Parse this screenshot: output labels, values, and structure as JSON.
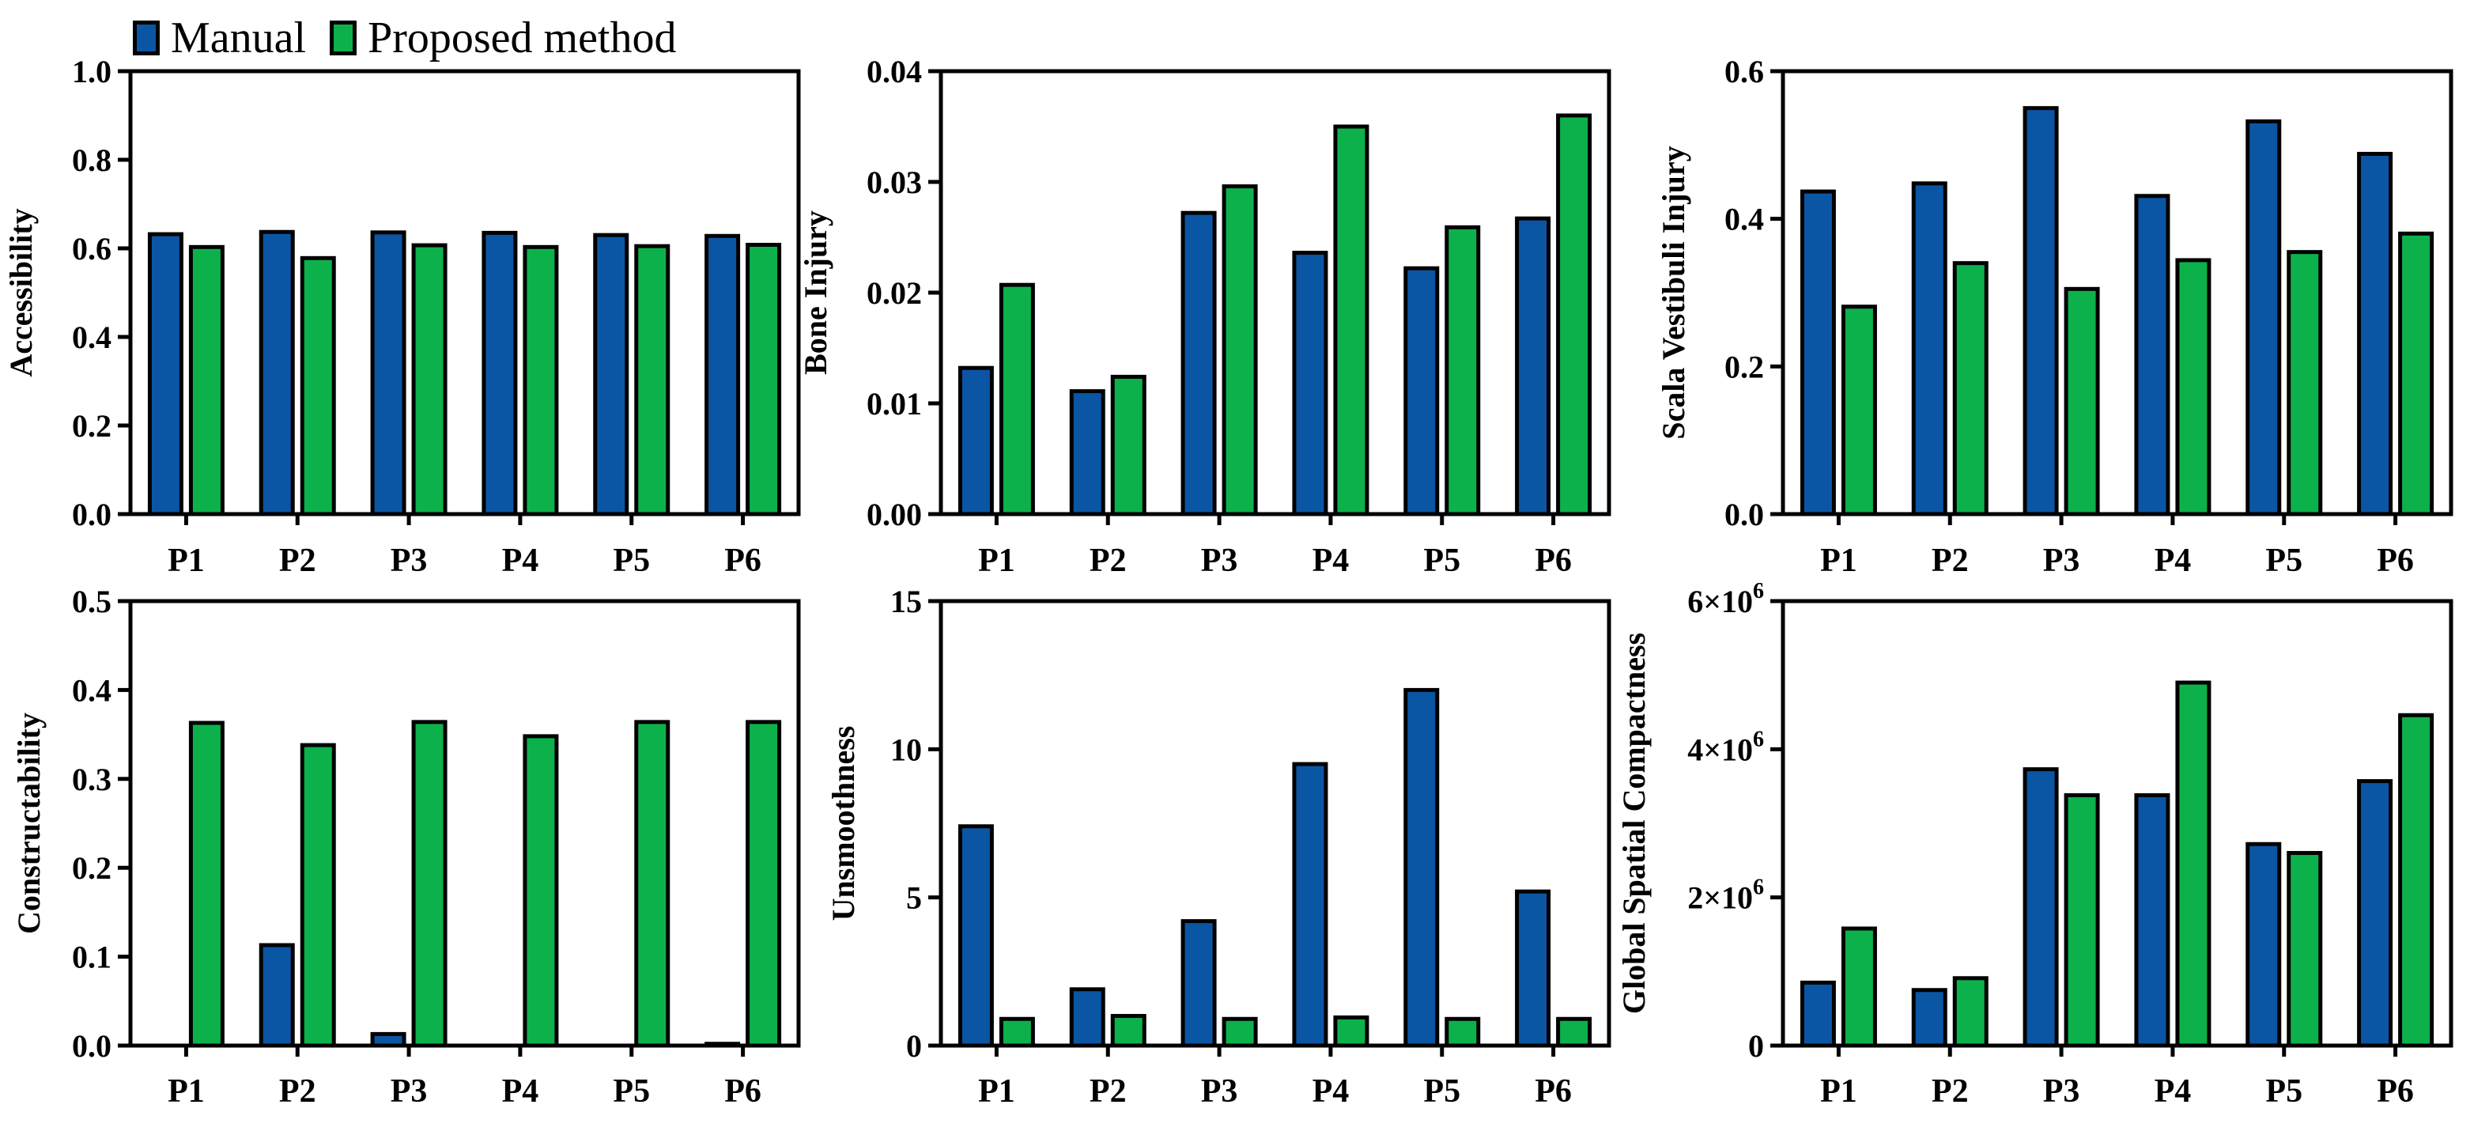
{
  "legend": {
    "items": [
      {
        "label": "Manual",
        "color": "#0b56a4"
      },
      {
        "label": "Proposed method",
        "color": "#0db14b"
      }
    ]
  },
  "chart_data": [
    {
      "type": "bar",
      "title": "",
      "xlabel": "",
      "ylabel": "Accessibility",
      "categories": [
        "P1",
        "P2",
        "P3",
        "P4",
        "P5",
        "P6"
      ],
      "ylim": [
        0,
        1.0
      ],
      "yticks": [
        "0.0",
        "0.2",
        "0.4",
        "0.6",
        "0.8",
        "1.0"
      ],
      "series": [
        {
          "name": "Manual",
          "values": [
            0.632,
            0.637,
            0.636,
            0.635,
            0.63,
            0.628
          ]
        },
        {
          "name": "Proposed method",
          "values": [
            0.603,
            0.578,
            0.607,
            0.603,
            0.605,
            0.608
          ]
        }
      ]
    },
    {
      "type": "bar",
      "title": "",
      "xlabel": "",
      "ylabel": "Bone Injury",
      "categories": [
        "P1",
        "P2",
        "P3",
        "P4",
        "P5",
        "P6"
      ],
      "ylim": [
        0,
        0.04
      ],
      "yticks": [
        "0.00",
        "0.01",
        "0.02",
        "0.03",
        "0.04"
      ],
      "series": [
        {
          "name": "Manual",
          "values": [
            0.0132,
            0.0111,
            0.0272,
            0.0236,
            0.0222,
            0.0267
          ]
        },
        {
          "name": "Proposed method",
          "values": [
            0.0207,
            0.0124,
            0.0296,
            0.035,
            0.0259,
            0.036
          ]
        }
      ]
    },
    {
      "type": "bar",
      "title": "",
      "xlabel": "",
      "ylabel": "Scala Vestibuli Injury",
      "categories": [
        "P1",
        "P2",
        "P3",
        "P4",
        "P5",
        "P6"
      ],
      "ylim": [
        0,
        0.6
      ],
      "yticks": [
        "0.0",
        "0.2",
        "0.4",
        "0.6"
      ],
      "series": [
        {
          "name": "Manual",
          "values": [
            0.437,
            0.448,
            0.55,
            0.431,
            0.532,
            0.488
          ]
        },
        {
          "name": "Proposed method",
          "values": [
            0.281,
            0.34,
            0.305,
            0.344,
            0.355,
            0.38
          ]
        }
      ]
    },
    {
      "type": "bar",
      "title": "",
      "xlabel": "",
      "ylabel": "Constructability",
      "categories": [
        "P1",
        "P2",
        "P3",
        "P4",
        "P5",
        "P6"
      ],
      "ylim": [
        0,
        0.5
      ],
      "yticks": [
        "0.0",
        "0.1",
        "0.2",
        "0.3",
        "0.4",
        "0.5"
      ],
      "series": [
        {
          "name": "Manual",
          "values": [
            0.0,
            0.113,
            0.013,
            0.0,
            0.0,
            0.002
          ]
        },
        {
          "name": "Proposed method",
          "values": [
            0.363,
            0.338,
            0.364,
            0.348,
            0.364,
            0.364
          ]
        }
      ]
    },
    {
      "type": "bar",
      "title": "",
      "xlabel": "",
      "ylabel": "Unsmoothness",
      "categories": [
        "P1",
        "P2",
        "P3",
        "P4",
        "P5",
        "P6"
      ],
      "ylim": [
        0,
        15
      ],
      "yticks": [
        "0",
        "5",
        "10",
        "15"
      ],
      "series": [
        {
          "name": "Manual",
          "values": [
            7.4,
            1.9,
            4.2,
            9.5,
            12.0,
            5.2
          ]
        },
        {
          "name": "Proposed method",
          "values": [
            0.9,
            1.0,
            0.9,
            0.95,
            0.9,
            0.9
          ]
        }
      ]
    },
    {
      "type": "bar",
      "title": "",
      "xlabel": "",
      "ylabel": "Global Spatial Compactness",
      "categories": [
        "P1",
        "P2",
        "P3",
        "P4",
        "P5",
        "P6"
      ],
      "ylim": [
        0,
        6000000
      ],
      "yticks": [
        "0",
        "2×10⁶",
        "4×10⁶",
        "6×10⁶"
      ],
      "series": [
        {
          "name": "Manual",
          "values": [
            850000,
            750000,
            3730000,
            3380000,
            2720000,
            3570000
          ]
        },
        {
          "name": "Proposed method",
          "values": [
            1580000,
            910000,
            3380000,
            4900000,
            2600000,
            4460000
          ]
        }
      ]
    }
  ]
}
